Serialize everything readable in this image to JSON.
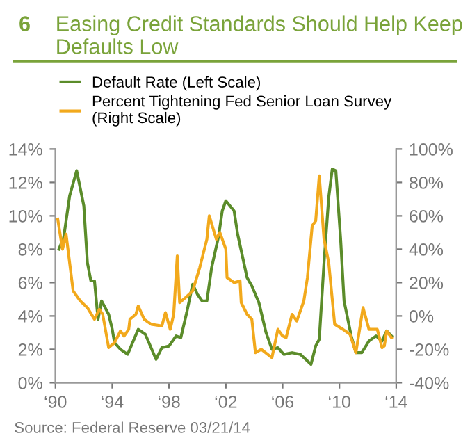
{
  "chart_data": {
    "type": "line",
    "title": "Easing Credit Standards Should Help Keep Defaults Low",
    "annotations": [
      "6",
      "Source: Federal Reserve 03/21/14"
    ],
    "legend": "top",
    "grid": false,
    "marker": "none",
    "line_style": "solid",
    "series": [
      {
        "name": "Default Rate (Left Scale)",
        "color": "#5b8c2a",
        "x": [
          "1990-04",
          "1990-08",
          "1991-01",
          "1991-07",
          "1992-01",
          "1992-04",
          "1992-07",
          "1992-10",
          "1993-01",
          "1993-04",
          "1993-10",
          "1994-01",
          "1994-03",
          "1994-08",
          "1995-02",
          "1995-11",
          "1996-05",
          "1997-02",
          "1997-07",
          "1998-01",
          "1998-07",
          "1998-11",
          "1999-04",
          "1999-09",
          "2000-01",
          "2000-05",
          "2000-09",
          "2001-01",
          "2001-07",
          "2001-10",
          "2002-01",
          "2002-08",
          "2002-11",
          "2003-07",
          "2003-11",
          "2004-05",
          "2004-11",
          "2005-04",
          "2005-09",
          "2006-02",
          "2006-09",
          "2007-04",
          "2008-01",
          "2008-05",
          "2008-08",
          "2008-12",
          "2009-04",
          "2009-07",
          "2009-10",
          "2010-02",
          "2010-05",
          "2010-11",
          "2011-03",
          "2011-08",
          "2012-02",
          "2012-08",
          "2013-01",
          "2013-05",
          "2013-09"
        ],
        "values": [
          8.0,
          8.7,
          11.2,
          12.7,
          10.6,
          7.2,
          6.1,
          6.1,
          3.8,
          4.9,
          4.1,
          3.2,
          2.4,
          2.0,
          1.7,
          3.2,
          2.9,
          1.4,
          2.1,
          2.2,
          2.8,
          2.7,
          4.2,
          5.9,
          5.3,
          4.9,
          4.9,
          6.9,
          8.8,
          10.3,
          10.9,
          10.3,
          8.9,
          6.3,
          5.8,
          4.8,
          3.0,
          2.0,
          2.1,
          1.7,
          1.8,
          1.7,
          1.1,
          2.2,
          2.6,
          7.2,
          11.1,
          12.8,
          12.7,
          8.6,
          4.9,
          2.8,
          1.8,
          1.8,
          2.5,
          2.8,
          2.5,
          3.1,
          2.8
        ]
      },
      {
        "name": "Percent Tightening Fed Senior Loan Survey\n(Right Scale)",
        "color": "#f2a91c",
        "axis": "y2",
        "x": [
          "1990-03",
          "1990-07",
          "1990-10",
          "1991-04",
          "1991-10",
          "1992-04",
          "1992-10",
          "1993-02",
          "1993-05",
          "1993-10",
          "1994-03",
          "1994-08",
          "1994-11",
          "1995-03",
          "1995-04",
          "1995-09",
          "1995-11",
          "1996-04",
          "1996-10",
          "1997-07",
          "1997-10",
          "1998-02",
          "1998-05",
          "1998-08",
          "1998-10",
          "1999-03",
          "1999-09",
          "2000-03",
          "2000-09",
          "2000-11",
          "2001-05",
          "2001-08",
          "2002-01",
          "2002-02",
          "2002-08",
          "2003-01",
          "2003-02",
          "2003-07",
          "2003-11",
          "2004-02",
          "2004-07",
          "2005-04",
          "2005-09",
          "2006-01",
          "2006-04",
          "2006-09",
          "2007-01",
          "2007-07",
          "2007-10",
          "2008-02",
          "2008-05",
          "2008-08",
          "2008-12",
          "2009-04",
          "2009-09",
          "2010-04",
          "2010-10",
          "2011-03",
          "2011-09",
          "2012-02",
          "2012-05",
          "2012-09",
          "2013-01",
          "2013-03",
          "2013-05",
          "2013-09"
        ],
        "values": [
          58,
          40,
          49,
          15,
          9,
          5,
          -2,
          4,
          1,
          -19,
          -16,
          -9,
          -12,
          -8,
          -2,
          1,
          6,
          -2,
          -5,
          -6,
          2,
          -8,
          1,
          36,
          8,
          11,
          15,
          29,
          46,
          60,
          46,
          50,
          40,
          23,
          20,
          21,
          8,
          1,
          -2,
          -22,
          -20,
          -25,
          -8,
          -12,
          -13,
          1,
          -3,
          9,
          23,
          54,
          57,
          84,
          46,
          32,
          -5,
          -8,
          -11,
          -22,
          5,
          -8,
          -8,
          -8,
          -19,
          -18,
          -9,
          -13
        ]
      }
    ],
    "xlim": [
      "1990",
      "2014"
    ],
    "xticks": [
      {
        "value": "1990",
        "label": "‘90"
      },
      {
        "value": "1994",
        "label": "‘94"
      },
      {
        "value": "1998",
        "label": "‘98"
      },
      {
        "value": "2002",
        "label": "‘02"
      },
      {
        "value": "2006",
        "label": "‘06"
      },
      {
        "value": "2010",
        "label": "‘10"
      },
      {
        "value": "2014",
        "label": "‘14"
      }
    ],
    "ylim": [
      0,
      14
    ],
    "yticks": [
      {
        "value": 0,
        "label": "0%"
      },
      {
        "value": 2,
        "label": "2%"
      },
      {
        "value": 4,
        "label": "4%"
      },
      {
        "value": 6,
        "label": "6%"
      },
      {
        "value": 8,
        "label": "8%"
      },
      {
        "value": 10,
        "label": "10%"
      },
      {
        "value": 12,
        "label": "12%"
      },
      {
        "value": 14,
        "label": "14%"
      }
    ],
    "y2lim": [
      -40,
      100
    ],
    "y2ticks": [
      {
        "value": -40,
        "label": "-40%"
      },
      {
        "value": -20,
        "label": "-20%"
      },
      {
        "value": 0,
        "label": "0%"
      },
      {
        "value": 20,
        "label": "20%"
      },
      {
        "value": 40,
        "label": "40%"
      },
      {
        "value": 60,
        "label": "60%"
      },
      {
        "value": 80,
        "label": "80%"
      },
      {
        "value": 100,
        "label": "100%"
      }
    ]
  }
}
